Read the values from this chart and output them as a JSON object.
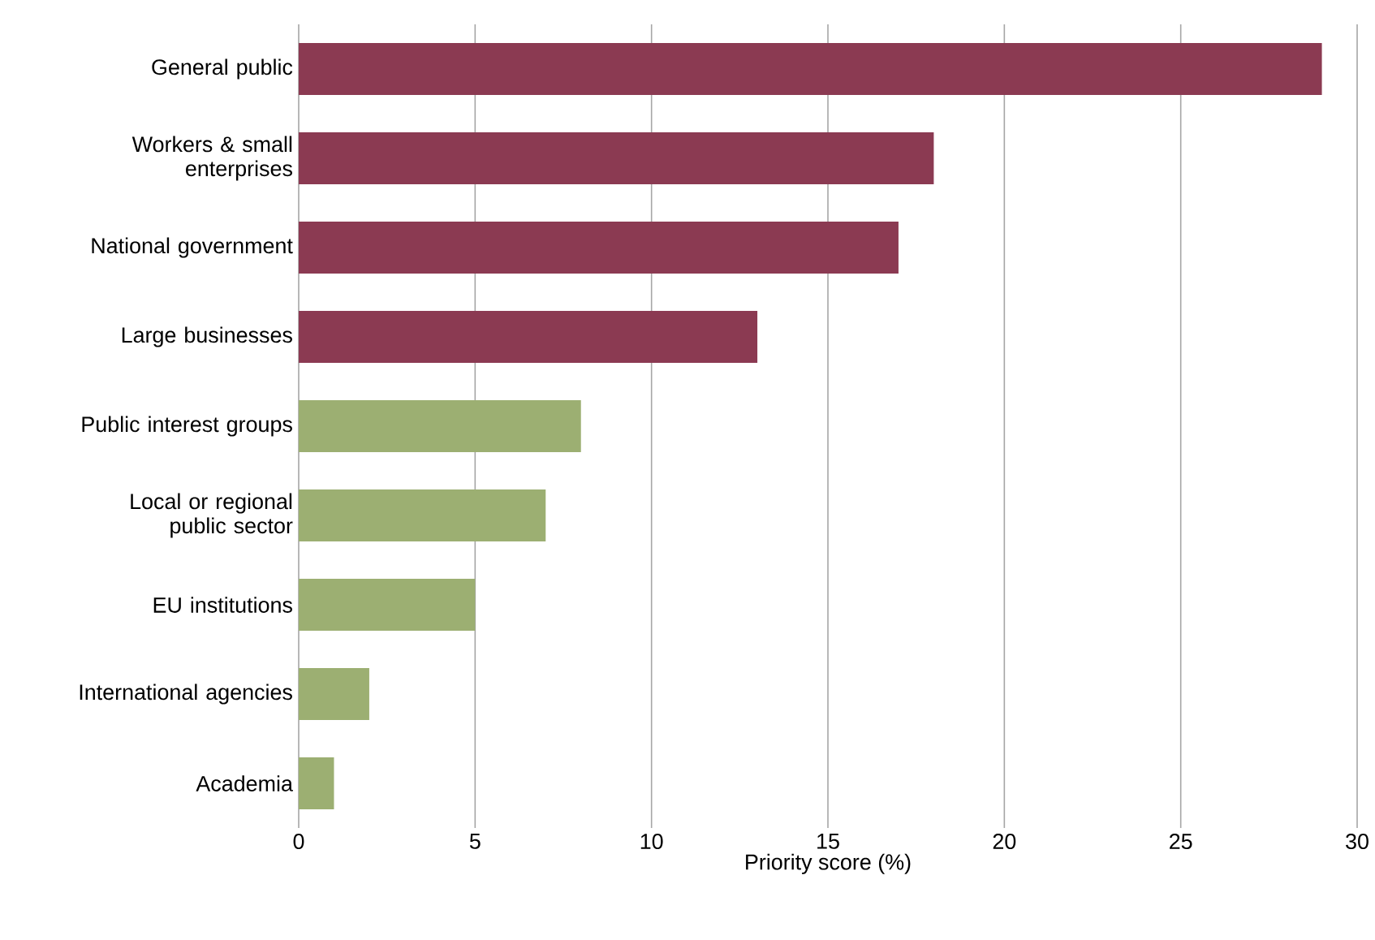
{
  "chart_data": {
    "type": "bar",
    "orientation": "horizontal",
    "xlabel": "Priority score (%)",
    "categories": [
      "General public",
      "Workers & small enterprises",
      "National government",
      "Large businesses",
      "Public interest groups",
      "Local or regional public sector",
      "EU institutions",
      "International agencies",
      "Academia"
    ],
    "values": [
      29,
      18,
      17,
      13,
      8,
      7,
      5,
      2,
      1
    ],
    "colors": [
      "#8b3a52",
      "#8b3a52",
      "#8b3a52",
      "#8b3a52",
      "#9caf72",
      "#9caf72",
      "#9caf72",
      "#9caf72",
      "#9caf72"
    ],
    "xlim": [
      0,
      30
    ],
    "xticks": [
      0,
      5,
      10,
      15,
      20,
      25,
      30
    ],
    "grid": "x"
  }
}
